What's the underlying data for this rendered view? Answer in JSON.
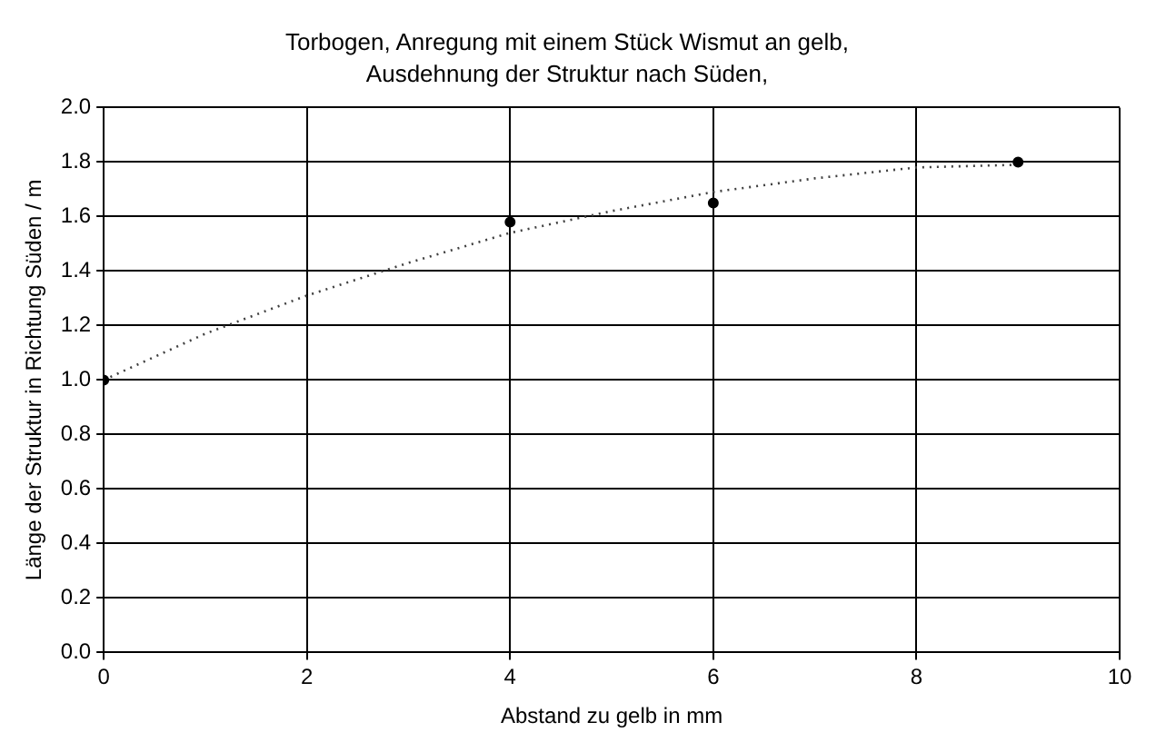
{
  "chart_data": {
    "type": "scatter",
    "title": "Torbogen, Anregung mit einem Stück Wismut an gelb,",
    "subtitle": "Ausdehnung der Struktur nach Süden,",
    "xlabel": "Abstand zu gelb in mm",
    "ylabel": "Länge der Struktur in Richtung Süden / m",
    "xlim": [
      0,
      10
    ],
    "xticks": [
      0,
      2,
      4,
      6,
      8,
      10
    ],
    "ylim": [
      0,
      2
    ],
    "yticks": [
      {
        "value": 0,
        "label": "0.0"
      },
      0.2,
      0.4,
      0.6,
      0.8,
      {
        "value": 1,
        "label": "1.0"
      },
      1.2,
      1.4,
      1.6,
      1.8,
      {
        "value": 2,
        "label": "2.0"
      }
    ],
    "grid": true,
    "legend": false,
    "series": [
      {
        "type": "scatter",
        "color": "#000000",
        "marker": "circle",
        "x": [
          0,
          4,
          6,
          9
        ],
        "values": [
          1.0,
          1.58,
          1.65,
          1.8
        ]
      },
      {
        "type": "line",
        "color": "#404040",
        "marker": "none",
        "line_style": "dotted",
        "x": [
          0,
          1,
          2,
          3,
          4,
          5,
          6,
          7,
          8,
          9
        ],
        "values": [
          1.0,
          1.17,
          1.31,
          1.43,
          1.54,
          1.62,
          1.69,
          1.74,
          1.78,
          1.79
        ]
      }
    ]
  }
}
